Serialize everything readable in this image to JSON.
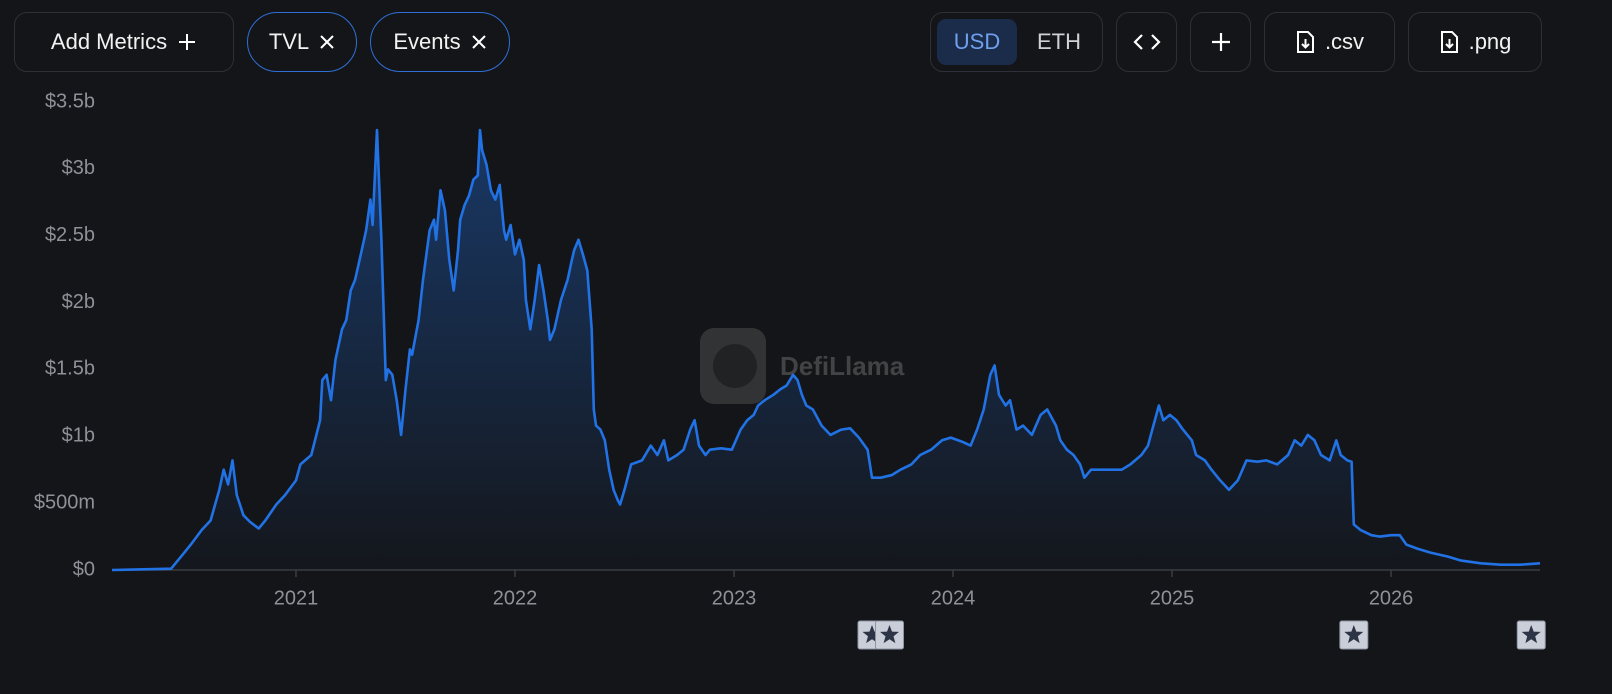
{
  "toolbar": {
    "add_metrics": "Add Metrics",
    "denominations": [
      "USD",
      "ETH"
    ],
    "active_denomination": 0,
    "downloads": [
      ".csv",
      ".png"
    ]
  },
  "chart_data": {
    "type": "area",
    "watermark": "DefiLlama",
    "x": [
      2020.16,
      2020.43,
      2020.48,
      2020.52,
      2020.57,
      2020.61,
      2020.65,
      2020.67,
      2020.69,
      2020.71,
      2020.73,
      2020.76,
      2020.79,
      2020.83,
      2020.86,
      2020.91,
      2020.95,
      2021.0,
      2021.02,
      2021.07,
      2021.11,
      2021.12,
      2021.14,
      2021.16,
      2021.18,
      2021.21,
      2021.23,
      2021.25,
      2021.27,
      2021.3,
      2021.32,
      2021.34,
      2021.35,
      2021.37,
      2021.39,
      2021.41,
      2021.42,
      2021.44,
      2021.46,
      2021.48,
      2021.5,
      2021.52,
      2021.53,
      2021.56,
      2021.58,
      2021.61,
      2021.63,
      2021.64,
      2021.66,
      2021.68,
      2021.7,
      2021.72,
      2021.74,
      2021.75,
      2021.77,
      2021.79,
      2021.81,
      2021.83,
      2021.84,
      2021.85,
      2021.87,
      2021.89,
      2021.91,
      2021.93,
      2021.95,
      2021.96,
      2021.98,
      2022.0,
      2022.02,
      2022.04,
      2022.05,
      2022.07,
      2022.09,
      2022.11,
      2022.13,
      2022.15,
      2022.16,
      2022.18,
      2022.21,
      2022.24,
      2022.26,
      2022.27,
      2022.29,
      2022.31,
      2022.33,
      2022.35,
      2022.36,
      2022.37,
      2022.39,
      2022.41,
      2022.43,
      2022.45,
      2022.47,
      2022.48,
      2022.5,
      2022.53,
      2022.58,
      2022.62,
      2022.65,
      2022.68,
      2022.7,
      2022.74,
      2022.77,
      2022.8,
      2022.82,
      2022.84,
      2022.87,
      2022.89,
      2022.94,
      2022.99,
      2023.03,
      2023.06,
      2023.09,
      2023.11,
      2023.14,
      2023.18,
      2023.21,
      2023.24,
      2023.27,
      2023.29,
      2023.31,
      2023.33,
      2023.36,
      2023.4,
      2023.44,
      2023.49,
      2023.53,
      2023.57,
      2023.61,
      2023.63,
      2023.67,
      2023.72,
      2023.76,
      2023.81,
      2023.85,
      2023.9,
      2023.95,
      2023.99,
      2024.04,
      2024.08,
      2024.11,
      2024.14,
      2024.17,
      2024.19,
      2024.21,
      2024.24,
      2024.26,
      2024.29,
      2024.32,
      2024.36,
      2024.4,
      2024.43,
      2024.47,
      2024.49,
      2024.52,
      2024.55,
      2024.58,
      2024.6,
      2024.63,
      2024.68,
      2024.72,
      2024.77,
      2024.81,
      2024.86,
      2024.89,
      2024.91,
      2024.94,
      2024.96,
      2024.99,
      2025.02,
      2025.05,
      2025.09,
      2025.11,
      2025.15,
      2025.18,
      2025.22,
      2025.26,
      2025.3,
      2025.34,
      2025.39,
      2025.43,
      2025.48,
      2025.53,
      2025.56,
      2025.59,
      2025.62,
      2025.65,
      2025.68,
      2025.72,
      2025.75,
      2025.77,
      2025.8,
      2025.82,
      2025.83,
      2025.86,
      2025.91,
      2025.95,
      2026.0,
      2026.04,
      2026.07,
      2026.12,
      2026.18,
      2026.26,
      2026.32,
      2026.41,
      2026.5,
      2026.59,
      2026.68
    ],
    "series": [
      {
        "name": "TVL",
        "color": "#2172e5",
        "values": [
          0,
          0.01,
          0.11,
          0.19,
          0.3,
          0.37,
          0.6,
          0.75,
          0.64,
          0.82,
          0.56,
          0.41,
          0.36,
          0.31,
          0.37,
          0.49,
          0.56,
          0.67,
          0.79,
          0.86,
          1.12,
          1.42,
          1.46,
          1.27,
          1.57,
          1.8,
          1.87,
          2.09,
          2.17,
          2.39,
          2.54,
          2.77,
          2.58,
          3.29,
          2.47,
          1.42,
          1.5,
          1.46,
          1.27,
          1.01,
          1.35,
          1.65,
          1.61,
          1.87,
          2.17,
          2.54,
          2.62,
          2.47,
          2.84,
          2.69,
          2.32,
          2.09,
          2.39,
          2.62,
          2.73,
          2.8,
          2.92,
          2.95,
          3.29,
          3.14,
          3.03,
          2.84,
          2.77,
          2.88,
          2.54,
          2.47,
          2.58,
          2.36,
          2.47,
          2.32,
          2.02,
          1.8,
          2.02,
          2.28,
          2.09,
          1.87,
          1.72,
          1.8,
          2.02,
          2.17,
          2.32,
          2.39,
          2.47,
          2.36,
          2.24,
          1.8,
          1.2,
          1.08,
          1.05,
          0.97,
          0.75,
          0.6,
          0.52,
          0.49,
          0.6,
          0.79,
          0.82,
          0.93,
          0.86,
          0.97,
          0.82,
          0.86,
          0.9,
          1.05,
          1.12,
          0.93,
          0.86,
          0.9,
          0.91,
          0.9,
          1.05,
          1.12,
          1.16,
          1.23,
          1.27,
          1.31,
          1.35,
          1.38,
          1.46,
          1.42,
          1.31,
          1.23,
          1.2,
          1.08,
          1.01,
          1.05,
          1.06,
          0.99,
          0.9,
          0.69,
          0.69,
          0.71,
          0.75,
          0.79,
          0.86,
          0.9,
          0.97,
          0.99,
          0.96,
          0.93,
          1.05,
          1.2,
          1.46,
          1.53,
          1.31,
          1.23,
          1.27,
          1.05,
          1.08,
          1.01,
          1.16,
          1.2,
          1.08,
          0.97,
          0.9,
          0.86,
          0.79,
          0.69,
          0.75,
          0.75,
          0.75,
          0.75,
          0.79,
          0.86,
          0.93,
          1.05,
          1.23,
          1.12,
          1.16,
          1.12,
          1.05,
          0.97,
          0.86,
          0.82,
          0.75,
          0.67,
          0.6,
          0.67,
          0.82,
          0.81,
          0.82,
          0.79,
          0.86,
          0.97,
          0.93,
          1.01,
          0.97,
          0.86,
          0.82,
          0.97,
          0.86,
          0.82,
          0.81,
          0.34,
          0.3,
          0.26,
          0.25,
          0.26,
          0.26,
          0.19,
          0.16,
          0.13,
          0.1,
          0.07,
          0.05,
          0.04,
          0.04,
          0.05
        ]
      }
    ],
    "events": {
      "name": "Events",
      "x": [
        2023.63,
        2023.71,
        2025.83,
        2026.64
      ]
    },
    "xlim": [
      2020.16,
      2026.68
    ],
    "xticks": [
      2021,
      2022,
      2023,
      2024,
      2025,
      2026
    ],
    "ylim": [
      0,
      3.5
    ],
    "yticks": [
      {
        "value": 0,
        "label": "$0"
      },
      {
        "value": 0.5,
        "label": "$500m"
      },
      {
        "value": 1,
        "label": "$1b"
      },
      {
        "value": 1.5,
        "label": "$1.5b"
      },
      {
        "value": 2,
        "label": "$2b"
      },
      {
        "value": 2.5,
        "label": "$2.5b"
      },
      {
        "value": 3,
        "label": "$3b"
      },
      {
        "value": 3.5,
        "label": "$3.5b"
      }
    ],
    "grid": false
  }
}
